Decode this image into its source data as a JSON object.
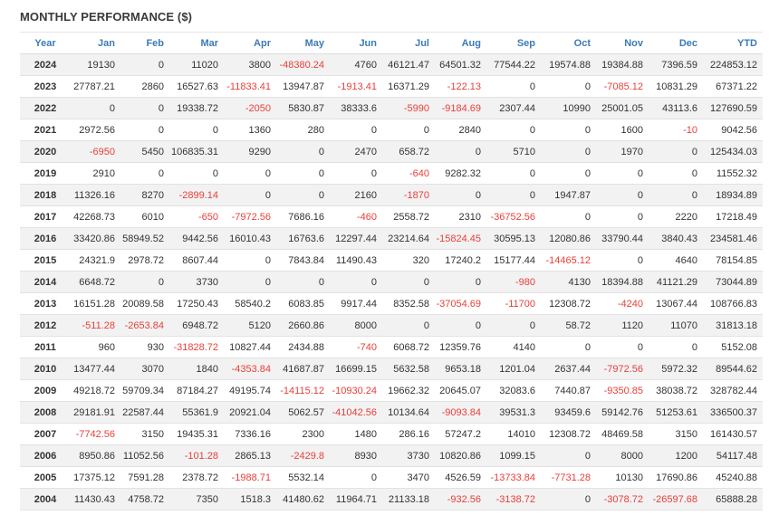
{
  "title": "MONTHLY PERFORMANCE ($)",
  "headers": [
    "Year",
    "Jan",
    "Feb",
    "Mar",
    "Apr",
    "May",
    "Jun",
    "Jul",
    "Aug",
    "Sep",
    "Oct",
    "Nov",
    "Dec",
    "YTD"
  ],
  "rows": [
    [
      "2024",
      "19130",
      "0",
      "11020",
      "3800",
      "-48380.24",
      "4760",
      "46121.47",
      "64501.32",
      "77544.22",
      "19574.88",
      "19384.88",
      "7396.59",
      "224853.12"
    ],
    [
      "2023",
      "27787.21",
      "2860",
      "16527.63",
      "-11833.41",
      "13947.87",
      "-1913.41",
      "16371.29",
      "-122.13",
      "0",
      "0",
      "-7085.12",
      "10831.29",
      "67371.22"
    ],
    [
      "2022",
      "0",
      "0",
      "19338.72",
      "-2050",
      "5830.87",
      "38333.6",
      "-5990",
      "-9184.69",
      "2307.44",
      "10990",
      "25001.05",
      "43113.6",
      "127690.59"
    ],
    [
      "2021",
      "2972.56",
      "0",
      "0",
      "1360",
      "280",
      "0",
      "0",
      "2840",
      "0",
      "0",
      "1600",
      "-10",
      "9042.56"
    ],
    [
      "2020",
      "-6950",
      "5450",
      "106835.31",
      "9290",
      "0",
      "2470",
      "658.72",
      "0",
      "5710",
      "0",
      "1970",
      "0",
      "125434.03"
    ],
    [
      "2019",
      "2910",
      "0",
      "0",
      "0",
      "0",
      "0",
      "-640",
      "9282.32",
      "0",
      "0",
      "0",
      "0",
      "11552.32"
    ],
    [
      "2018",
      "11326.16",
      "8270",
      "-2899.14",
      "0",
      "0",
      "2160",
      "-1870",
      "0",
      "0",
      "1947.87",
      "0",
      "0",
      "18934.89"
    ],
    [
      "2017",
      "42268.73",
      "6010",
      "-650",
      "-7972.56",
      "7686.16",
      "-460",
      "2558.72",
      "2310",
      "-36752.56",
      "0",
      "0",
      "2220",
      "17218.49"
    ],
    [
      "2016",
      "33420.86",
      "58949.52",
      "9442.56",
      "16010.43",
      "16763.6",
      "12297.44",
      "23214.64",
      "-15824.45",
      "30595.13",
      "12080.86",
      "33790.44",
      "3840.43",
      "234581.46"
    ],
    [
      "2015",
      "24321.9",
      "2978.72",
      "8607.44",
      "0",
      "7843.84",
      "11490.43",
      "320",
      "17240.2",
      "15177.44",
      "-14465.12",
      "0",
      "4640",
      "78154.85"
    ],
    [
      "2014",
      "6648.72",
      "0",
      "3730",
      "0",
      "0",
      "0",
      "0",
      "0",
      "-980",
      "4130",
      "18394.88",
      "41121.29",
      "73044.89"
    ],
    [
      "2013",
      "16151.28",
      "20089.58",
      "17250.43",
      "58540.2",
      "6083.85",
      "9917.44",
      "8352.58",
      "-37054.69",
      "-11700",
      "12308.72",
      "-4240",
      "13067.44",
      "108766.83"
    ],
    [
      "2012",
      "-511.28",
      "-2653.84",
      "6948.72",
      "5120",
      "2660.86",
      "8000",
      "0",
      "0",
      "0",
      "58.72",
      "1120",
      "11070",
      "31813.18"
    ],
    [
      "2011",
      "960",
      "930",
      "-31828.72",
      "10827.44",
      "2434.88",
      "-740",
      "6068.72",
      "12359.76",
      "4140",
      "0",
      "0",
      "0",
      "5152.08"
    ],
    [
      "2010",
      "13477.44",
      "3070",
      "1840",
      "-4353.84",
      "41687.87",
      "16699.15",
      "5632.58",
      "9653.18",
      "1201.04",
      "2637.44",
      "-7972.56",
      "5972.32",
      "89544.62"
    ],
    [
      "2009",
      "49218.72",
      "59709.34",
      "87184.27",
      "49195.74",
      "-14115.12",
      "-10930.24",
      "19662.32",
      "20645.07",
      "32083.6",
      "7440.87",
      "-9350.85",
      "38038.72",
      "328782.44"
    ],
    [
      "2008",
      "29181.91",
      "22587.44",
      "55361.9",
      "20921.04",
      "5062.57",
      "-41042.56",
      "10134.64",
      "-9093.84",
      "39531.3",
      "93459.6",
      "59142.76",
      "51253.61",
      "336500.37"
    ],
    [
      "2007",
      "-7742.56",
      "3150",
      "19435.31",
      "7336.16",
      "2300",
      "1480",
      "286.16",
      "57247.2",
      "14010",
      "12308.72",
      "48469.58",
      "3150",
      "161430.57"
    ],
    [
      "2006",
      "8950.86",
      "11052.56",
      "-101.28",
      "2865.13",
      "-2429.8",
      "8930",
      "3730",
      "10820.86",
      "1099.15",
      "0",
      "8000",
      "1200",
      "54117.48"
    ],
    [
      "2005",
      "17375.12",
      "7591.28",
      "2378.72",
      "-1988.71",
      "5532.14",
      "0",
      "3470",
      "4526.59",
      "-13733.84",
      "-7731.28",
      "10130",
      "17690.86",
      "45240.88"
    ],
    [
      "2004",
      "11430.43",
      "4758.72",
      "7350",
      "1518.3",
      "41480.62",
      "11964.71",
      "21133.18",
      "-932.56",
      "-3138.72",
      "0",
      "-3078.72",
      "-26597.68",
      "65888.28"
    ]
  ],
  "colors": {
    "header_text": "#3a7bb8",
    "negative": "#e8403a",
    "stripe": "#f2f2f2"
  }
}
